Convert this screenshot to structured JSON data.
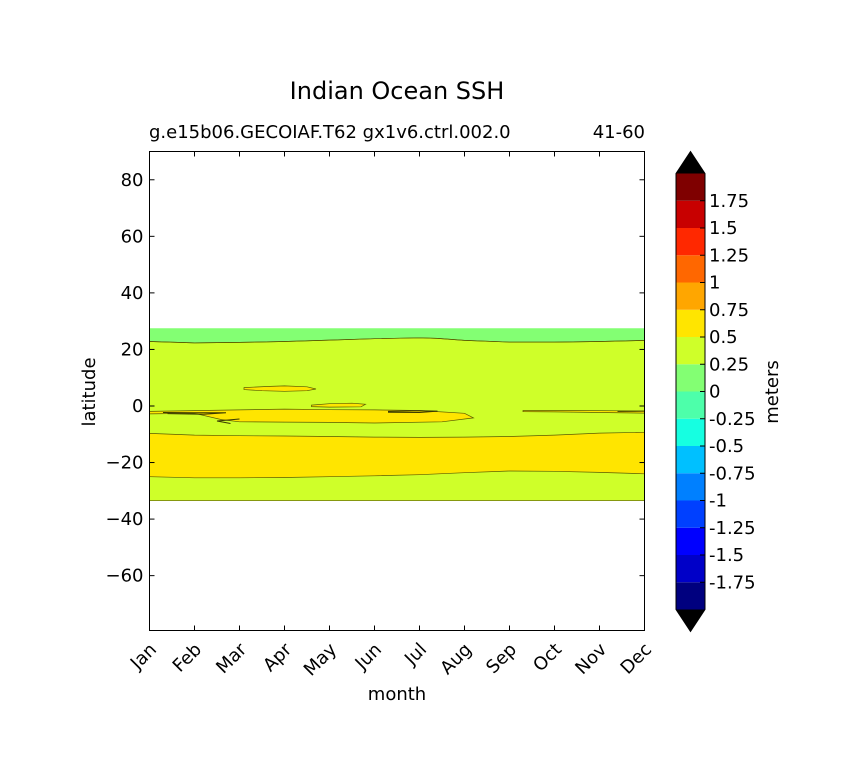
{
  "chart_data": {
    "type": "contour",
    "title": "Indian Ocean SSH",
    "subtitle_left": "g.e15b06.GECOIAF.T62 gx1v6.ctrl.002.0",
    "subtitle_right": "41-60",
    "xlabel": "month",
    "ylabel": "latitude",
    "x_categories": [
      "Jan",
      "Feb",
      "Mar",
      "Apr",
      "May",
      "Jun",
      "Jul",
      "Aug",
      "Sep",
      "Oct",
      "Nov",
      "Dec"
    ],
    "xlim": [
      1,
      12
    ],
    "ylim": [
      -79.4,
      90
    ],
    "y_ticks": [
      80,
      60,
      40,
      20,
      0,
      -20,
      -40,
      -60
    ],
    "grid": false,
    "colorbar": {
      "label": "meters",
      "extend": "both",
      "levels": [
        -2,
        -1.75,
        -1.5,
        -1.25,
        -1,
        -0.75,
        -0.5,
        -0.25,
        0,
        0.25,
        0.5,
        0.75,
        1,
        1.25,
        1.5,
        1.75,
        2
      ],
      "tick_labels": [
        "1.75",
        "1.5",
        "1.25",
        "1",
        "0.75",
        "0.5",
        "0.25",
        "0",
        "-0.25",
        "-0.5",
        "-0.75",
        "-1",
        "-1.25",
        "-1.5",
        "-1.75"
      ],
      "tick_values": [
        1.75,
        1.5,
        1.25,
        1,
        0.75,
        0.5,
        0.25,
        0,
        -0.25,
        -0.5,
        -0.75,
        -1,
        -1.25,
        -1.5,
        -1.75
      ],
      "colors": [
        "#00007f",
        "#0000c8",
        "#0000ff",
        "#0040ff",
        "#0080ff",
        "#00c0ff",
        "#16ffe1",
        "#4dffaa",
        "#83ff73",
        "#cfff29",
        "#ffe500",
        "#ffa600",
        "#ff6700",
        "#ff2800",
        "#c80000",
        "#7f0000"
      ],
      "under_color": "#000000",
      "over_color": "#000000"
    },
    "regions": [
      {
        "level": "0-0.25",
        "color": "#83ff73",
        "upper": [
          [
            1,
            27.5
          ],
          [
            12,
            27.5
          ]
        ],
        "lower": [
          [
            1,
            22.8
          ],
          [
            2,
            22.3
          ],
          [
            3,
            22.5
          ],
          [
            4,
            22.8
          ],
          [
            5,
            23.3
          ],
          [
            6,
            23.8
          ],
          [
            7,
            24.1
          ],
          [
            7.4,
            23.9
          ],
          [
            8,
            23.2
          ],
          [
            9,
            22.6
          ],
          [
            10,
            22.6
          ],
          [
            11,
            22.8
          ],
          [
            12,
            23.2
          ]
        ]
      },
      {
        "level": "0.25-0.5",
        "color": "#cfff29",
        "upper": [
          [
            1,
            22.8
          ],
          [
            2,
            22.3
          ],
          [
            3,
            22.5
          ],
          [
            4,
            22.8
          ],
          [
            5,
            23.3
          ],
          [
            6,
            23.8
          ],
          [
            7,
            24.1
          ],
          [
            7.4,
            23.9
          ],
          [
            8,
            23.2
          ],
          [
            9,
            22.6
          ],
          [
            10,
            22.6
          ],
          [
            11,
            22.8
          ],
          [
            12,
            23.2
          ]
        ],
        "lower": [
          [
            1,
            -33.5
          ],
          [
            12,
            -33.5
          ]
        ]
      },
      {
        "level": "0.5-0.75",
        "color": "#ffe500",
        "upper": [
          [
            1,
            -9.7
          ],
          [
            2,
            -10.3
          ],
          [
            3,
            -10.5
          ],
          [
            4,
            -10.6
          ],
          [
            5,
            -10.8
          ],
          [
            6,
            -11
          ],
          [
            7,
            -11.1
          ],
          [
            8,
            -11
          ],
          [
            9,
            -10.8
          ],
          [
            10,
            -10.3
          ],
          [
            11,
            -9.6
          ],
          [
            12,
            -9.3
          ]
        ],
        "lower": [
          [
            1,
            -25
          ],
          [
            2,
            -25.4
          ],
          [
            3,
            -25.4
          ],
          [
            4,
            -25.3
          ],
          [
            5,
            -25
          ],
          [
            6,
            -24.7
          ],
          [
            7,
            -24.3
          ],
          [
            8,
            -23.6
          ],
          [
            9,
            -23
          ],
          [
            10,
            -23.1
          ],
          [
            11,
            -23.5
          ],
          [
            12,
            -24
          ]
        ]
      }
    ],
    "patches": [
      {
        "level": "0.5-0.75",
        "color": "#ffe500",
        "points": [
          [
            1,
            -1.9
          ],
          [
            3,
            -1.4
          ],
          [
            4,
            -1.1
          ],
          [
            5,
            -1.3
          ],
          [
            6,
            -1.4
          ],
          [
            7,
            -1.6
          ],
          [
            8,
            -2.6
          ],
          [
            8.2,
            -4.2
          ],
          [
            7.5,
            -5.6
          ],
          [
            6,
            -6
          ],
          [
            5,
            -5.8
          ],
          [
            4,
            -5.7
          ],
          [
            3,
            -5.6
          ],
          [
            2.6,
            -4.8
          ],
          [
            2,
            -2.6
          ],
          [
            1,
            -2.8
          ]
        ]
      },
      {
        "level": "0.5-0.75",
        "color": "#ffe500",
        "points": [
          [
            3.1,
            6.5
          ],
          [
            3.6,
            6.9
          ],
          [
            4,
            7.1
          ],
          [
            4.5,
            6.8
          ],
          [
            4.7,
            6
          ],
          [
            4.5,
            5.4
          ],
          [
            4,
            5.2
          ],
          [
            3.5,
            5.4
          ],
          [
            3.1,
            5.8
          ]
        ]
      },
      {
        "level": "0.5-0.75",
        "color": "#ffe500",
        "points": [
          [
            4.6,
            0.3
          ],
          [
            5,
            0.8
          ],
          [
            5.5,
            1
          ],
          [
            5.8,
            0.6
          ],
          [
            5.7,
            -0.3
          ],
          [
            5,
            -0.4
          ],
          [
            4.6,
            -0.2
          ]
        ]
      },
      {
        "level": "0.5-0.75",
        "color": "#ffe500",
        "points": [
          [
            9.3,
            -1.6
          ],
          [
            10.5,
            -1.6
          ],
          [
            11.5,
            -1.7
          ],
          [
            12,
            -1.8
          ],
          [
            12,
            -2.5
          ],
          [
            11,
            -2.3
          ],
          [
            10,
            -2.1
          ],
          [
            9.3,
            -2
          ]
        ]
      }
    ],
    "contour_lines": [
      [
        [
          6.3,
          -1.9
        ],
        [
          7,
          -1.7
        ],
        [
          7.4,
          -1.8
        ],
        [
          7,
          -2.3
        ],
        [
          6.3,
          -2.2
        ]
      ],
      [
        [
          11.4,
          -1.9
        ],
        [
          12,
          -1.8
        ]
      ],
      [
        [
          1.3,
          -2.3
        ],
        [
          2,
          -2.4
        ],
        [
          2.7,
          -2.4
        ],
        [
          2.2,
          -2.9
        ],
        [
          1.4,
          -2.7
        ]
      ],
      [
        [
          2.8,
          -6.2
        ],
        [
          2.5,
          -5.3
        ],
        [
          3,
          -4.6
        ]
      ]
    ]
  }
}
